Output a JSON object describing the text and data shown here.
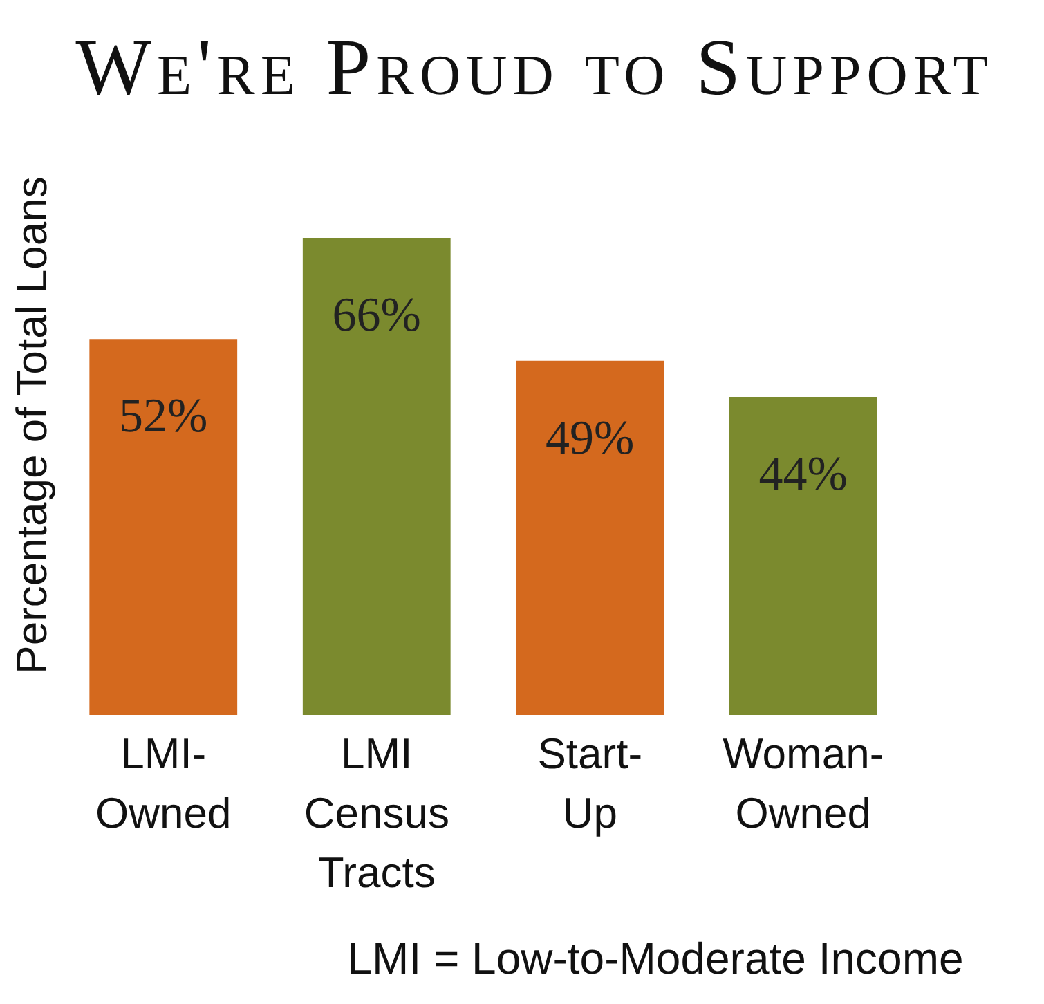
{
  "chart_data": {
    "type": "bar",
    "title": "We're Proud to Support",
    "ylabel": "Percentage of Total Loans",
    "categories": [
      "LMI-Owned",
      "LMI Census Tracts",
      "Start-Up",
      "Woman-Owned"
    ],
    "values": [
      52,
      66,
      49,
      44
    ],
    "colors": [
      "#d4691e",
      "#7b8a2e",
      "#d4691e",
      "#7b8a2e"
    ],
    "value_labels": [
      "52%",
      "66%",
      "49%",
      "44%"
    ],
    "tick_labels": "x",
    "annotations": [
      "LMI = Low-to-Moderate Income"
    ]
  }
}
